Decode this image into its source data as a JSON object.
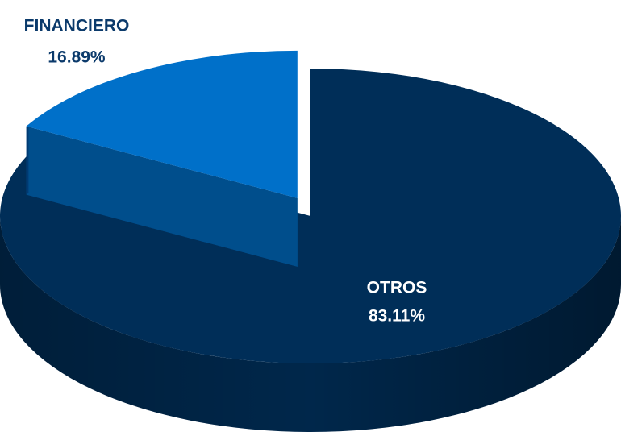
{
  "chart_data": {
    "type": "pie",
    "categories": [
      "FINANCIERO",
      "OTROS"
    ],
    "values": [
      16.89,
      83.11
    ],
    "value_labels": [
      "16.89%",
      "83.11%"
    ],
    "colors": [
      "#0070c9",
      "#002e58"
    ]
  }
}
